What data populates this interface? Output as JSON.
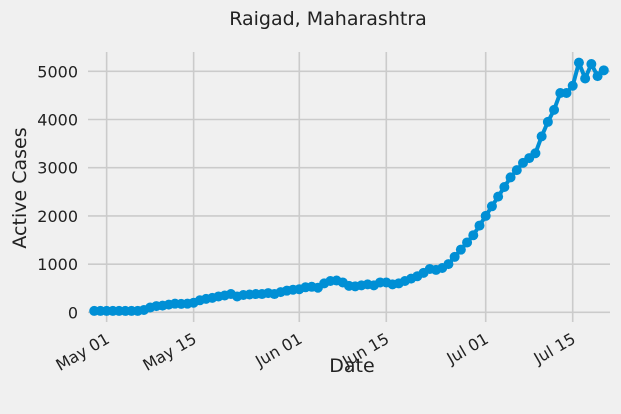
{
  "chart_data": {
    "type": "line",
    "title": "Raigad, Maharashtra",
    "xlabel": "Date",
    "ylabel": "Active Cases",
    "grid": true,
    "x_tick_labels": [
      "May 01",
      "May 15",
      "Jun 01",
      "Jun 15",
      "Jul 01",
      "Jul 15"
    ],
    "y_ticks": [
      0,
      1000,
      2000,
      3000,
      4000,
      5000
    ],
    "xlim": [
      "2020-04-28",
      "2020-07-21"
    ],
    "ylim": [
      -200,
      5400
    ],
    "series": [
      {
        "color": "#008fd5",
        "marker": "circle",
        "points": [
          [
            "2020-04-29",
            30
          ],
          [
            "2020-04-30",
            30
          ],
          [
            "2020-05-01",
            30
          ],
          [
            "2020-05-02",
            30
          ],
          [
            "2020-05-03",
            30
          ],
          [
            "2020-05-04",
            30
          ],
          [
            "2020-05-05",
            30
          ],
          [
            "2020-05-06",
            30
          ],
          [
            "2020-05-07",
            50
          ],
          [
            "2020-05-08",
            100
          ],
          [
            "2020-05-09",
            130
          ],
          [
            "2020-05-10",
            140
          ],
          [
            "2020-05-11",
            160
          ],
          [
            "2020-05-12",
            180
          ],
          [
            "2020-05-13",
            175
          ],
          [
            "2020-05-14",
            180
          ],
          [
            "2020-05-15",
            200
          ],
          [
            "2020-05-16",
            250
          ],
          [
            "2020-05-17",
            280
          ],
          [
            "2020-05-18",
            300
          ],
          [
            "2020-05-19",
            330
          ],
          [
            "2020-05-20",
            350
          ],
          [
            "2020-05-21",
            380
          ],
          [
            "2020-05-22",
            330
          ],
          [
            "2020-05-23",
            360
          ],
          [
            "2020-05-24",
            370
          ],
          [
            "2020-05-25",
            380
          ],
          [
            "2020-05-26",
            380
          ],
          [
            "2020-05-27",
            400
          ],
          [
            "2020-05-28",
            380
          ],
          [
            "2020-05-29",
            420
          ],
          [
            "2020-05-30",
            450
          ],
          [
            "2020-05-31",
            470
          ],
          [
            "2020-06-01",
            480
          ],
          [
            "2020-06-02",
            520
          ],
          [
            "2020-06-03",
            530
          ],
          [
            "2020-06-04",
            510
          ],
          [
            "2020-06-05",
            600
          ],
          [
            "2020-06-06",
            650
          ],
          [
            "2020-06-07",
            660
          ],
          [
            "2020-06-08",
            620
          ],
          [
            "2020-06-09",
            550
          ],
          [
            "2020-06-10",
            540
          ],
          [
            "2020-06-11",
            560
          ],
          [
            "2020-06-12",
            580
          ],
          [
            "2020-06-13",
            560
          ],
          [
            "2020-06-14",
            620
          ],
          [
            "2020-06-15",
            620
          ],
          [
            "2020-06-16",
            580
          ],
          [
            "2020-06-17",
            600
          ],
          [
            "2020-06-18",
            650
          ],
          [
            "2020-06-19",
            700
          ],
          [
            "2020-06-20",
            750
          ],
          [
            "2020-06-21",
            820
          ],
          [
            "2020-06-22",
            900
          ],
          [
            "2020-06-23",
            880
          ],
          [
            "2020-06-24",
            920
          ],
          [
            "2020-06-25",
            1000
          ],
          [
            "2020-06-26",
            1150
          ],
          [
            "2020-06-27",
            1300
          ],
          [
            "2020-06-28",
            1450
          ],
          [
            "2020-06-29",
            1600
          ],
          [
            "2020-06-30",
            1800
          ],
          [
            "2020-07-01",
            2000
          ],
          [
            "2020-07-02",
            2200
          ],
          [
            "2020-07-03",
            2400
          ],
          [
            "2020-07-04",
            2600
          ],
          [
            "2020-07-05",
            2800
          ],
          [
            "2020-07-06",
            2950
          ],
          [
            "2020-07-07",
            3100
          ],
          [
            "2020-07-08",
            3200
          ],
          [
            "2020-07-09",
            3300
          ],
          [
            "2020-07-10",
            3650
          ],
          [
            "2020-07-11",
            3950
          ],
          [
            "2020-07-12",
            4200
          ],
          [
            "2020-07-13",
            4550
          ],
          [
            "2020-07-14",
            4550
          ],
          [
            "2020-07-15",
            4700
          ],
          [
            "2020-07-16",
            5180
          ],
          [
            "2020-07-17",
            4850
          ],
          [
            "2020-07-18",
            5150
          ],
          [
            "2020-07-19",
            4900
          ],
          [
            "2020-07-20",
            5020
          ]
        ]
      }
    ]
  }
}
